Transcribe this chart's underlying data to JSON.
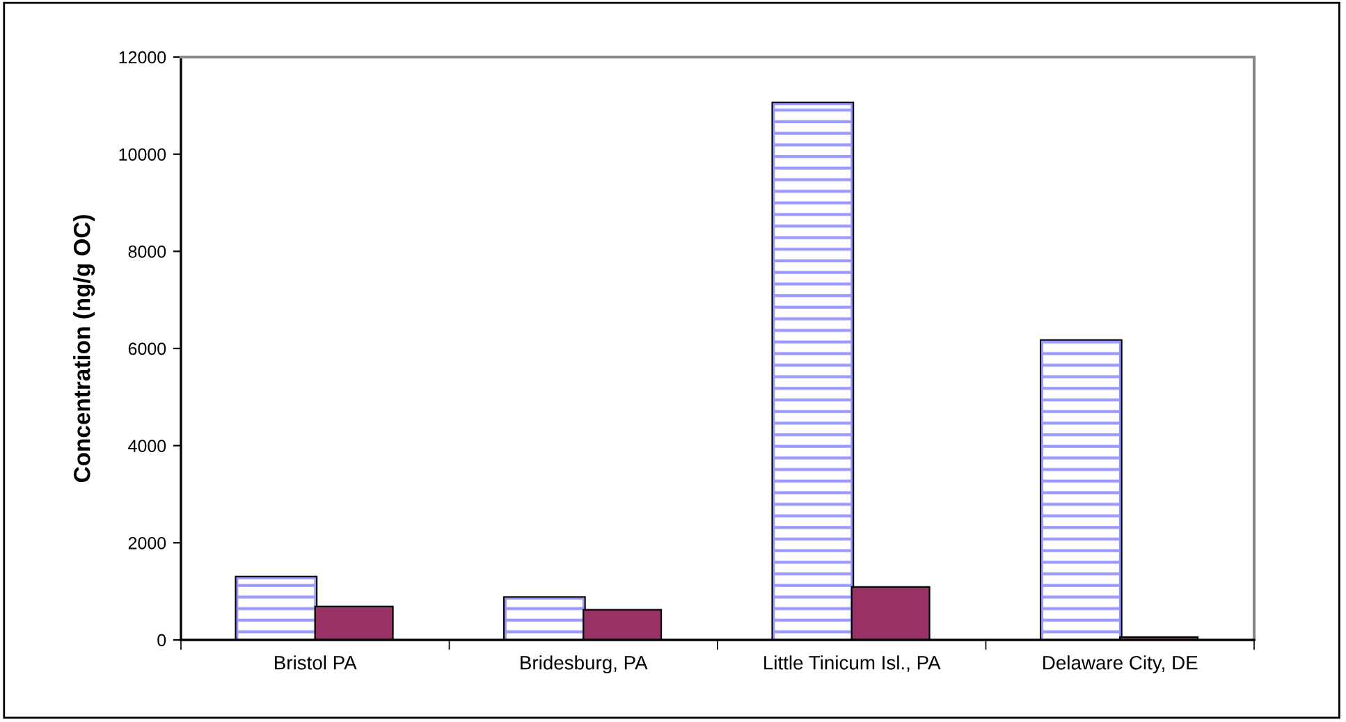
{
  "chart_data": {
    "type": "bar",
    "ylabel": "Concentration (ng/g OC)",
    "categories": [
      "Bristol PA",
      "Bridesburg, PA",
      "Little Tinicum Isl., PA",
      "Delaware City, DE"
    ],
    "series": [
      {
        "color": "#9999ff",
        "values": [
          1270,
          850,
          11030,
          6140
        ]
      },
      {
        "color": "#993366",
        "values": [
          690,
          620,
          1090,
          60
        ]
      }
    ],
    "ylim": [
      0,
      12000
    ],
    "yticks": [
      0,
      2000,
      4000,
      6000,
      8000,
      10000,
      12000
    ],
    "grid": false,
    "legend": false
  }
}
